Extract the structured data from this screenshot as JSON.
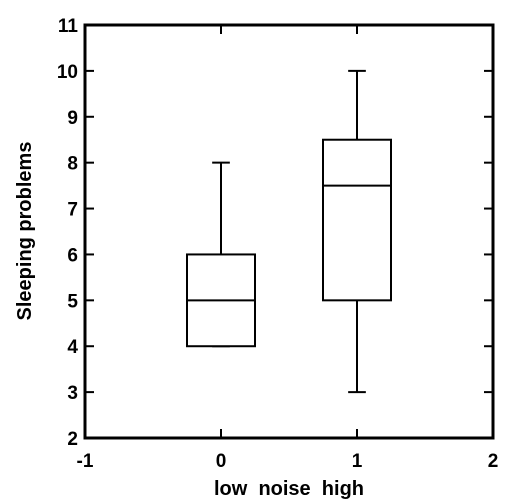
{
  "chart_data": {
    "type": "boxplot",
    "xlabel": "low  noise  high",
    "ylabel": "Sleeping problems",
    "xlim": [
      -1,
      2
    ],
    "ylim": [
      2,
      11
    ],
    "xticks": [
      "-1",
      "0",
      "1",
      "2"
    ],
    "yticks": [
      "2",
      "3",
      "4",
      "5",
      "6",
      "7",
      "8",
      "9",
      "10",
      "11"
    ],
    "grid": false,
    "boxes": [
      {
        "x": 0,
        "whisker_low": 4,
        "q1": 4,
        "median": 5,
        "q3": 6,
        "whisker_high": 8
      },
      {
        "x": 1,
        "whisker_low": 3,
        "q1": 5,
        "median": 7.5,
        "q3": 8.5,
        "whisker_high": 10
      }
    ]
  }
}
